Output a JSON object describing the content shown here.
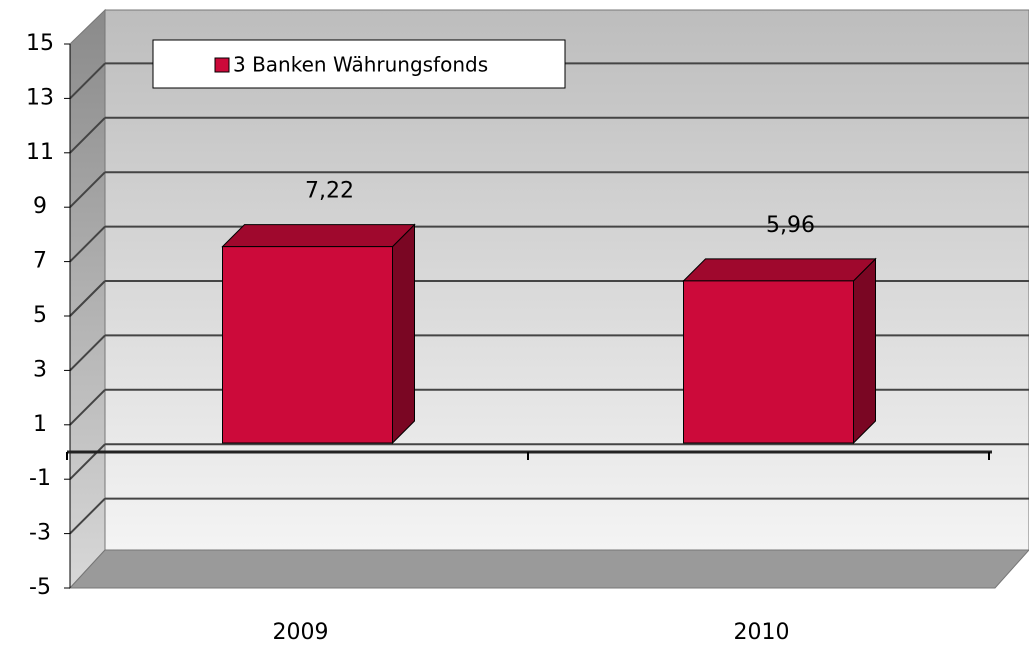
{
  "chart_data": {
    "type": "bar3d",
    "categories": [
      "2009",
      "2010"
    ],
    "series": [
      {
        "name": "3 Banken Währungsfonds",
        "color": "#cc0a3a",
        "values": [
          7.22,
          5.96
        ],
        "value_labels": [
          "7,22",
          "5,96"
        ]
      }
    ],
    "ylim": [
      -5,
      15
    ],
    "yticks": [
      -5,
      -3,
      -1,
      1,
      3,
      5,
      7,
      9,
      11,
      13,
      15
    ],
    "grid": true,
    "legend": "top-left"
  }
}
